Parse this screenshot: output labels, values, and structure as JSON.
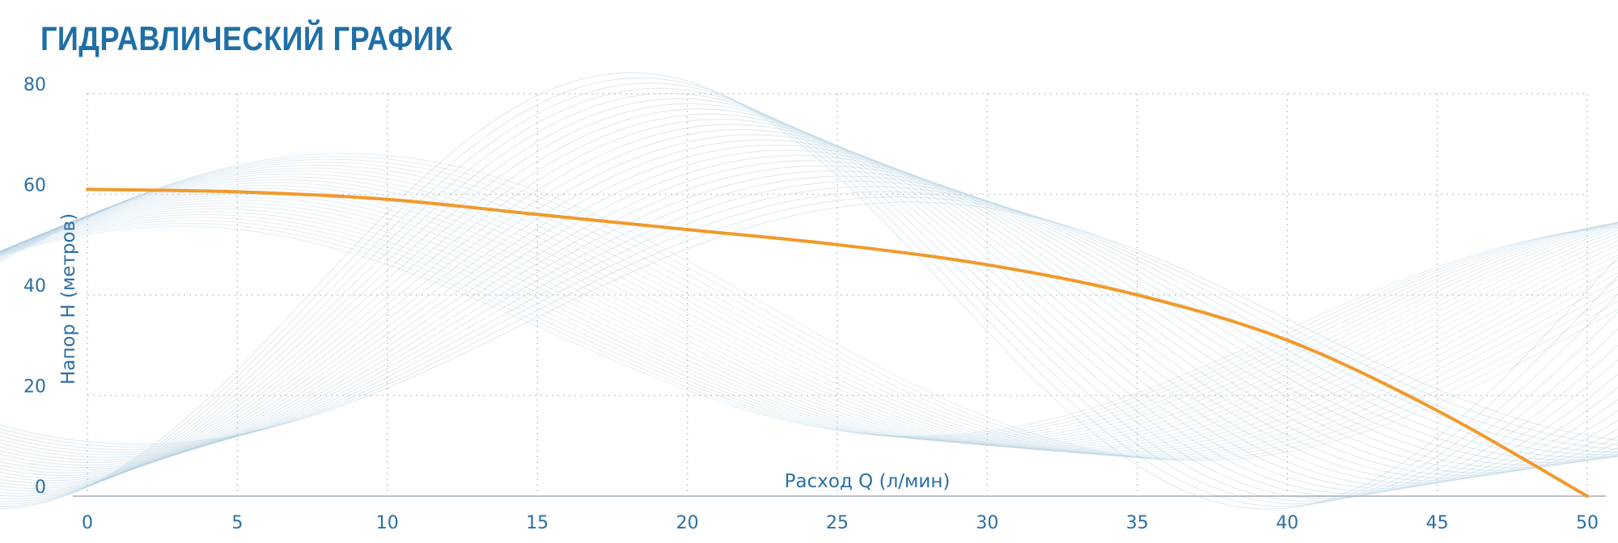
{
  "title": "ГИДРАВЛИЧЕСКИЙ ГРАФИК",
  "colors": {
    "title": "#1f6fa6",
    "curve": "#f09a2b",
    "axis_text": "#2a6fa3",
    "grid": "#c9cdd1",
    "decor_waves": "#aac8dd"
  },
  "chart_data": {
    "type": "line",
    "title": "ГИДРАВЛИЧЕСКИЙ ГРАФИК",
    "xlabel": "Расход Q (л/мин)",
    "ylabel": "Напор H (метров)",
    "xlim": [
      0,
      50
    ],
    "ylim": [
      0,
      80
    ],
    "xticks": [
      "0",
      "5",
      "10",
      "15",
      "20",
      "25",
      "30",
      "35",
      "40",
      "45",
      "50"
    ],
    "yticks": [
      "0",
      "20",
      "40",
      "60",
      "80"
    ],
    "grid": true,
    "series": [
      {
        "x": [
          0,
          5,
          10,
          15,
          20,
          25,
          30,
          35,
          40,
          45,
          50
        ],
        "y": [
          61,
          60.5,
          59,
          56,
          53,
          50,
          46,
          40,
          31,
          17,
          0
        ]
      }
    ]
  }
}
